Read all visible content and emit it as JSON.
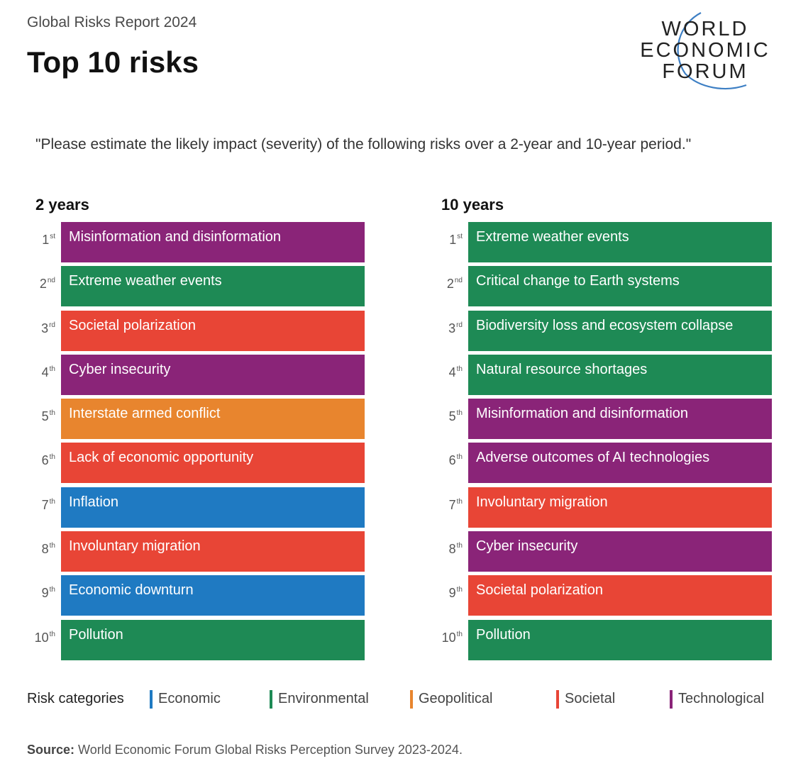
{
  "header": {
    "report_label": "Global Risks Report 2024",
    "title": "Top 10 risks"
  },
  "logo": {
    "line1": "WORLD",
    "line2": "ECONOMIC",
    "line3": "FORUM"
  },
  "question": "\"Please estimate the likely impact (severity) of the following risks over a 2-year and 10-year period.\"",
  "colors": {
    "Economic": "#1f7ac2",
    "Environmental": "#1e8a55",
    "Geopolitical": "#e8852e",
    "Societal": "#e84536",
    "Technological": "#8a2478"
  },
  "columns": [
    {
      "heading": "2 years",
      "items": [
        {
          "rank": "1",
          "suffix": "st",
          "label": "Misinformation and disinformation",
          "category": "Technological"
        },
        {
          "rank": "2",
          "suffix": "nd",
          "label": "Extreme weather events",
          "category": "Environmental"
        },
        {
          "rank": "3",
          "suffix": "rd",
          "label": "Societal polarization",
          "category": "Societal"
        },
        {
          "rank": "4",
          "suffix": "th",
          "label": "Cyber insecurity",
          "category": "Technological"
        },
        {
          "rank": "5",
          "suffix": "th",
          "label": "Interstate armed conflict",
          "category": "Geopolitical"
        },
        {
          "rank": "6",
          "suffix": "th",
          "label": "Lack of economic opportunity",
          "category": "Societal"
        },
        {
          "rank": "7",
          "suffix": "th",
          "label": "Inflation",
          "category": "Economic"
        },
        {
          "rank": "8",
          "suffix": "th",
          "label": "Involuntary migration",
          "category": "Societal"
        },
        {
          "rank": "9",
          "suffix": "th",
          "label": "Economic downturn",
          "category": "Economic"
        },
        {
          "rank": "10",
          "suffix": "th",
          "label": "Pollution",
          "category": "Environmental"
        }
      ]
    },
    {
      "heading": "10 years",
      "items": [
        {
          "rank": "1",
          "suffix": "st",
          "label": "Extreme weather events",
          "category": "Environmental"
        },
        {
          "rank": "2",
          "suffix": "nd",
          "label": "Critical change to Earth systems",
          "category": "Environmental"
        },
        {
          "rank": "3",
          "suffix": "rd",
          "label": "Biodiversity loss and ecosystem collapse",
          "category": "Environmental"
        },
        {
          "rank": "4",
          "suffix": "th",
          "label": "Natural resource shortages",
          "category": "Environmental"
        },
        {
          "rank": "5",
          "suffix": "th",
          "label": "Misinformation and disinformation",
          "category": "Technological"
        },
        {
          "rank": "6",
          "suffix": "th",
          "label": "Adverse outcomes of AI technologies",
          "category": "Technological"
        },
        {
          "rank": "7",
          "suffix": "th",
          "label": "Involuntary migration",
          "category": "Societal"
        },
        {
          "rank": "8",
          "suffix": "th",
          "label": "Cyber insecurity",
          "category": "Technological"
        },
        {
          "rank": "9",
          "suffix": "th",
          "label": "Societal polarization",
          "category": "Societal"
        },
        {
          "rank": "10",
          "suffix": "th",
          "label": "Pollution",
          "category": "Environmental"
        }
      ]
    }
  ],
  "legend": {
    "label": "Risk categories",
    "items": [
      "Economic",
      "Environmental",
      "Geopolitical",
      "Societal",
      "Technological"
    ]
  },
  "source": {
    "prefix": "Source:",
    "text": " World Economic Forum Global Risks Perception Survey 2023-2024."
  }
}
